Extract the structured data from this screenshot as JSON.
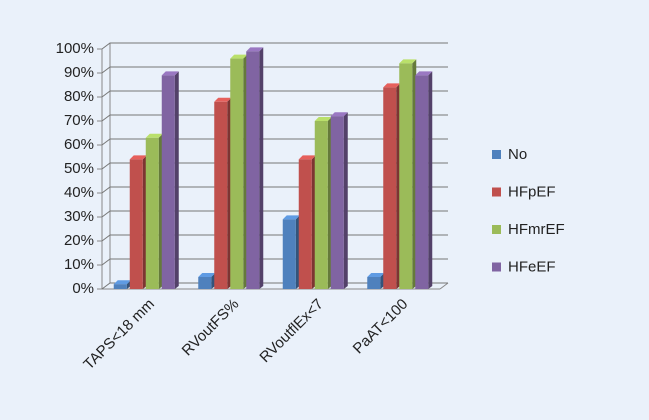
{
  "chart_data": {
    "type": "bar3d",
    "categories": [
      "TAPS<18 mm",
      "RVoutFS%",
      "RVoutflEx<7",
      "PaAT<100"
    ],
    "series": [
      {
        "name": "No",
        "color": "#4f81bd",
        "values": [
          2,
          5,
          29,
          5
        ]
      },
      {
        "name": "HFpEF",
        "color": "#c0504d",
        "values": [
          54,
          78,
          54,
          84
        ]
      },
      {
        "name": "HFmrEF",
        "color": "#9bbb59",
        "values": [
          63,
          96,
          70,
          94
        ]
      },
      {
        "name": "HFeEF",
        "color": "#8064a2",
        "values": [
          89,
          99,
          72,
          89
        ]
      }
    ],
    "ylim": [
      0,
      100
    ],
    "yticks": [
      {
        "value": 0,
        "label": "0%"
      },
      {
        "value": 10,
        "label": "10%"
      },
      {
        "value": 20,
        "label": "20%"
      },
      {
        "value": 30,
        "label": "30%"
      },
      {
        "value": 40,
        "label": "40%"
      },
      {
        "value": 50,
        "label": "50%"
      },
      {
        "value": 60,
        "label": "60%"
      },
      {
        "value": 70,
        "label": "70%"
      },
      {
        "value": 80,
        "label": "80%"
      },
      {
        "value": 90,
        "label": "90%"
      },
      {
        "value": 100,
        "label": "100%"
      }
    ],
    "grid": true,
    "legend": "right"
  }
}
